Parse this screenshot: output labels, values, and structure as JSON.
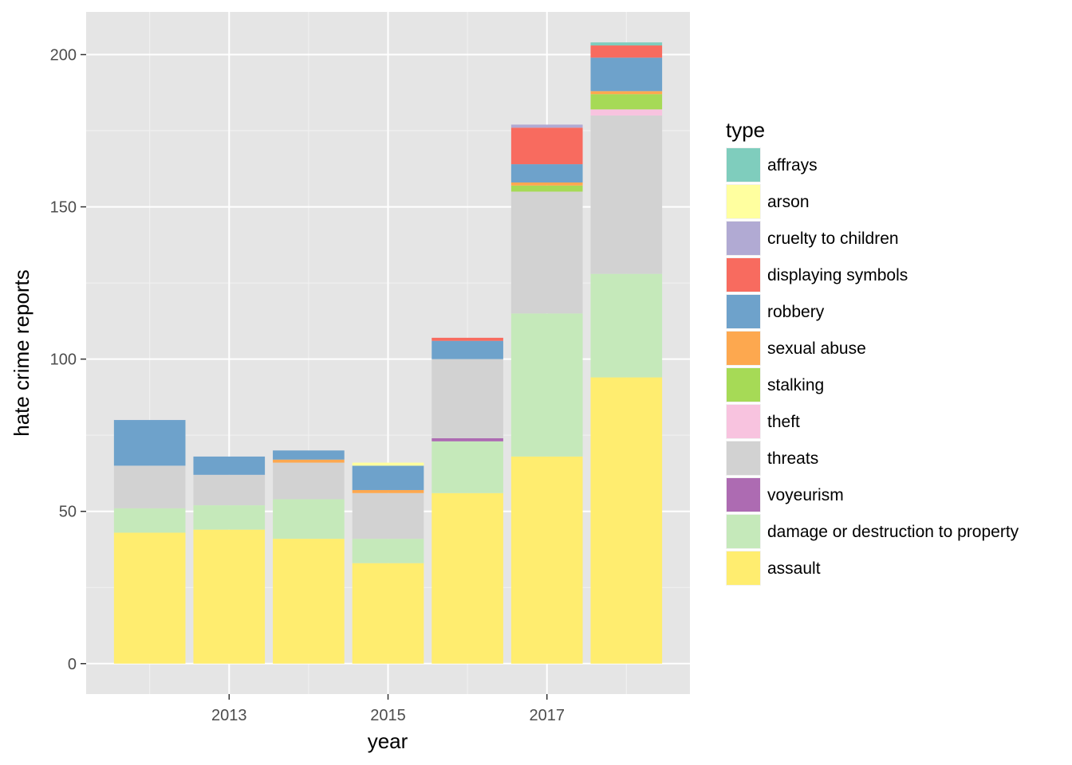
{
  "chart_data": {
    "type": "bar",
    "stacked": true,
    "xlabel": "year",
    "ylabel": "hate crime reports",
    "x": [
      2012,
      2013,
      2014,
      2015,
      2016,
      2017,
      2018
    ],
    "x_ticks": [
      "2013",
      "2015",
      "2017"
    ],
    "y_ticks": [
      "0",
      "50",
      "100",
      "150",
      "200"
    ],
    "ylim": [
      -10,
      214
    ],
    "xlim": [
      2011.2,
      2018.8
    ],
    "grid": true,
    "legend": {
      "title": "type",
      "placement": "right"
    },
    "series": [
      {
        "name": "assault",
        "color": "#FFED6F",
        "values": [
          43,
          44,
          41,
          33,
          56,
          68,
          94
        ]
      },
      {
        "name": "damage or destruction to property",
        "color": "#C5E9BA",
        "values": [
          8,
          8,
          13,
          8,
          17,
          47,
          34
        ]
      },
      {
        "name": "voyeurism",
        "color": "#AD6BB2",
        "values": [
          0,
          0,
          0,
          0,
          1,
          0,
          0
        ]
      },
      {
        "name": "threats",
        "color": "#D2D2D2",
        "values": [
          14,
          10,
          12,
          15,
          26,
          40,
          52
        ]
      },
      {
        "name": "theft",
        "color": "#F8C3DF",
        "values": [
          0,
          0,
          0,
          0,
          0,
          0,
          2
        ]
      },
      {
        "name": "stalking",
        "color": "#A6DA56",
        "values": [
          0,
          0,
          0,
          0,
          0,
          2,
          5
        ]
      },
      {
        "name": "sexual abuse",
        "color": "#FDA84F",
        "values": [
          0,
          0,
          1,
          1,
          0,
          1,
          1
        ]
      },
      {
        "name": "robbery",
        "color": "#6EA2CB",
        "values": [
          15,
          6,
          3,
          8,
          6,
          6,
          11
        ]
      },
      {
        "name": "displaying symbols",
        "color": "#F86B5F",
        "values": [
          0,
          0,
          0,
          0,
          1,
          12,
          4
        ]
      },
      {
        "name": "cruelty to children",
        "color": "#B1AAD3",
        "values": [
          0,
          0,
          0,
          0,
          0,
          1,
          0
        ]
      },
      {
        "name": "arson",
        "color": "#FFFF9F",
        "values": [
          0,
          0,
          0,
          1,
          0,
          0,
          0
        ]
      },
      {
        "name": "affrays",
        "color": "#7FCDBD",
        "values": [
          0,
          0,
          0,
          0,
          0,
          0,
          1
        ]
      }
    ],
    "legend_order": [
      "affrays",
      "arson",
      "cruelty to children",
      "displaying symbols",
      "robbery",
      "sexual abuse",
      "stalking",
      "theft",
      "threats",
      "voyeurism",
      "damage or destruction to property",
      "assault"
    ]
  }
}
